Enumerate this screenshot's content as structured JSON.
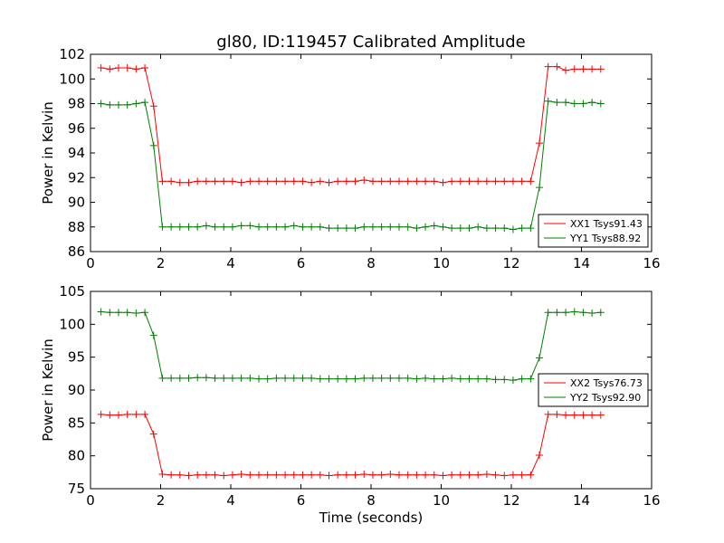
{
  "chart_data": [
    {
      "type": "line",
      "title": "gl80, ID:119457 Calibrated Amplitude",
      "xlabel": "",
      "ylabel": "Power in Kelvin",
      "xlim": [
        0,
        16
      ],
      "ylim": [
        86,
        102
      ],
      "xticks": [
        0,
        2,
        4,
        6,
        8,
        10,
        12,
        14,
        16
      ],
      "yticks": [
        86,
        88,
        90,
        92,
        94,
        96,
        98,
        100,
        102
      ],
      "legend_position": "lower-right",
      "marker": "+",
      "x": [
        0.3,
        0.55,
        0.8,
        1.05,
        1.3,
        1.55,
        1.8,
        2.05,
        2.3,
        2.55,
        2.8,
        3.05,
        3.3,
        3.55,
        3.8,
        4.05,
        4.3,
        4.55,
        4.8,
        5.05,
        5.3,
        5.55,
        5.8,
        6.05,
        6.3,
        6.55,
        6.8,
        7.05,
        7.3,
        7.55,
        7.8,
        8.05,
        8.3,
        8.55,
        8.8,
        9.05,
        9.3,
        9.55,
        9.8,
        10.05,
        10.3,
        10.55,
        10.8,
        11.05,
        11.3,
        11.55,
        11.8,
        12.05,
        12.3,
        12.55,
        12.8,
        13.05,
        13.3,
        13.55,
        13.8,
        14.05,
        14.3,
        14.55
      ],
      "series": [
        {
          "name": "XX1 Tsys91.43",
          "color": "#ff0000",
          "values": [
            100.9,
            100.8,
            100.9,
            100.9,
            100.8,
            100.9,
            97.8,
            91.7,
            91.7,
            91.6,
            91.6,
            91.7,
            91.7,
            91.7,
            91.7,
            91.7,
            91.6,
            91.7,
            91.7,
            91.7,
            91.7,
            91.7,
            91.7,
            91.7,
            91.6,
            91.7,
            91.6,
            91.7,
            91.7,
            91.7,
            91.8,
            91.7,
            91.7,
            91.7,
            91.7,
            91.7,
            91.7,
            91.7,
            91.7,
            91.6,
            91.7,
            91.7,
            91.7,
            91.7,
            91.7,
            91.7,
            91.7,
            91.7,
            91.7,
            91.7,
            94.8,
            101.0,
            101.0,
            100.7,
            100.8,
            100.8,
            100.8,
            100.8
          ]
        },
        {
          "name": "YY1 Tsys88.92",
          "color": "#007f00",
          "values": [
            98.0,
            97.9,
            97.9,
            97.9,
            98.0,
            98.1,
            94.6,
            88.0,
            88.0,
            88.0,
            88.0,
            88.0,
            88.1,
            88.0,
            88.0,
            88.0,
            88.1,
            88.1,
            88.0,
            88.0,
            88.0,
            88.0,
            88.1,
            88.0,
            88.0,
            88.0,
            87.9,
            87.9,
            87.9,
            87.9,
            88.0,
            88.0,
            88.0,
            88.0,
            88.0,
            88.0,
            87.9,
            88.0,
            88.1,
            88.0,
            87.9,
            87.9,
            87.9,
            88.0,
            87.9,
            87.9,
            87.9,
            87.8,
            87.9,
            87.9,
            91.2,
            98.2,
            98.1,
            98.1,
            98.0,
            98.0,
            98.1,
            98.0
          ]
        }
      ]
    },
    {
      "type": "line",
      "title": "",
      "xlabel": "Time (seconds)",
      "ylabel": "Power in Kelvin",
      "xlim": [
        0,
        16
      ],
      "ylim": [
        75,
        105
      ],
      "xticks": [
        0,
        2,
        4,
        6,
        8,
        10,
        12,
        14,
        16
      ],
      "yticks": [
        75,
        80,
        85,
        90,
        95,
        100,
        105
      ],
      "legend_position": "center-right",
      "marker": "+",
      "x": [
        0.3,
        0.55,
        0.8,
        1.05,
        1.3,
        1.55,
        1.8,
        2.05,
        2.3,
        2.55,
        2.8,
        3.05,
        3.3,
        3.55,
        3.8,
        4.05,
        4.3,
        4.55,
        4.8,
        5.05,
        5.3,
        5.55,
        5.8,
        6.05,
        6.3,
        6.55,
        6.8,
        7.05,
        7.3,
        7.55,
        7.8,
        8.05,
        8.3,
        8.55,
        8.8,
        9.05,
        9.3,
        9.55,
        9.8,
        10.05,
        10.3,
        10.55,
        10.8,
        11.05,
        11.3,
        11.55,
        11.8,
        12.05,
        12.3,
        12.55,
        12.8,
        13.05,
        13.3,
        13.55,
        13.8,
        14.05,
        14.3,
        14.55
      ],
      "series": [
        {
          "name": "XX2 Tsys76.73",
          "color": "#ff0000",
          "values": [
            86.3,
            86.2,
            86.2,
            86.3,
            86.3,
            86.3,
            83.3,
            77.2,
            77.1,
            77.1,
            77.0,
            77.1,
            77.1,
            77.1,
            77.0,
            77.1,
            77.2,
            77.1,
            77.1,
            77.1,
            77.1,
            77.1,
            77.1,
            77.1,
            77.1,
            77.1,
            77.0,
            77.1,
            77.1,
            77.1,
            77.2,
            77.1,
            77.1,
            77.2,
            77.1,
            77.1,
            77.1,
            77.1,
            77.1,
            77.0,
            77.1,
            77.1,
            77.1,
            77.1,
            77.2,
            77.1,
            77.0,
            77.1,
            77.1,
            77.1,
            80.1,
            86.3,
            86.3,
            86.2,
            86.2,
            86.2,
            86.2,
            86.2
          ]
        },
        {
          "name": "YY2 Tsys92.90",
          "color": "#007f00",
          "values": [
            101.9,
            101.8,
            101.8,
            101.8,
            101.7,
            101.8,
            98.3,
            91.8,
            91.8,
            91.8,
            91.8,
            91.9,
            91.9,
            91.8,
            91.8,
            91.8,
            91.8,
            91.8,
            91.7,
            91.7,
            91.8,
            91.8,
            91.8,
            91.8,
            91.8,
            91.7,
            91.7,
            91.7,
            91.7,
            91.7,
            91.8,
            91.8,
            91.8,
            91.8,
            91.8,
            91.8,
            91.7,
            91.8,
            91.7,
            91.7,
            91.8,
            91.7,
            91.7,
            91.7,
            91.7,
            91.6,
            91.6,
            91.5,
            91.7,
            91.7,
            94.9,
            101.8,
            101.8,
            101.8,
            101.9,
            101.8,
            101.7,
            101.8
          ]
        }
      ]
    }
  ]
}
